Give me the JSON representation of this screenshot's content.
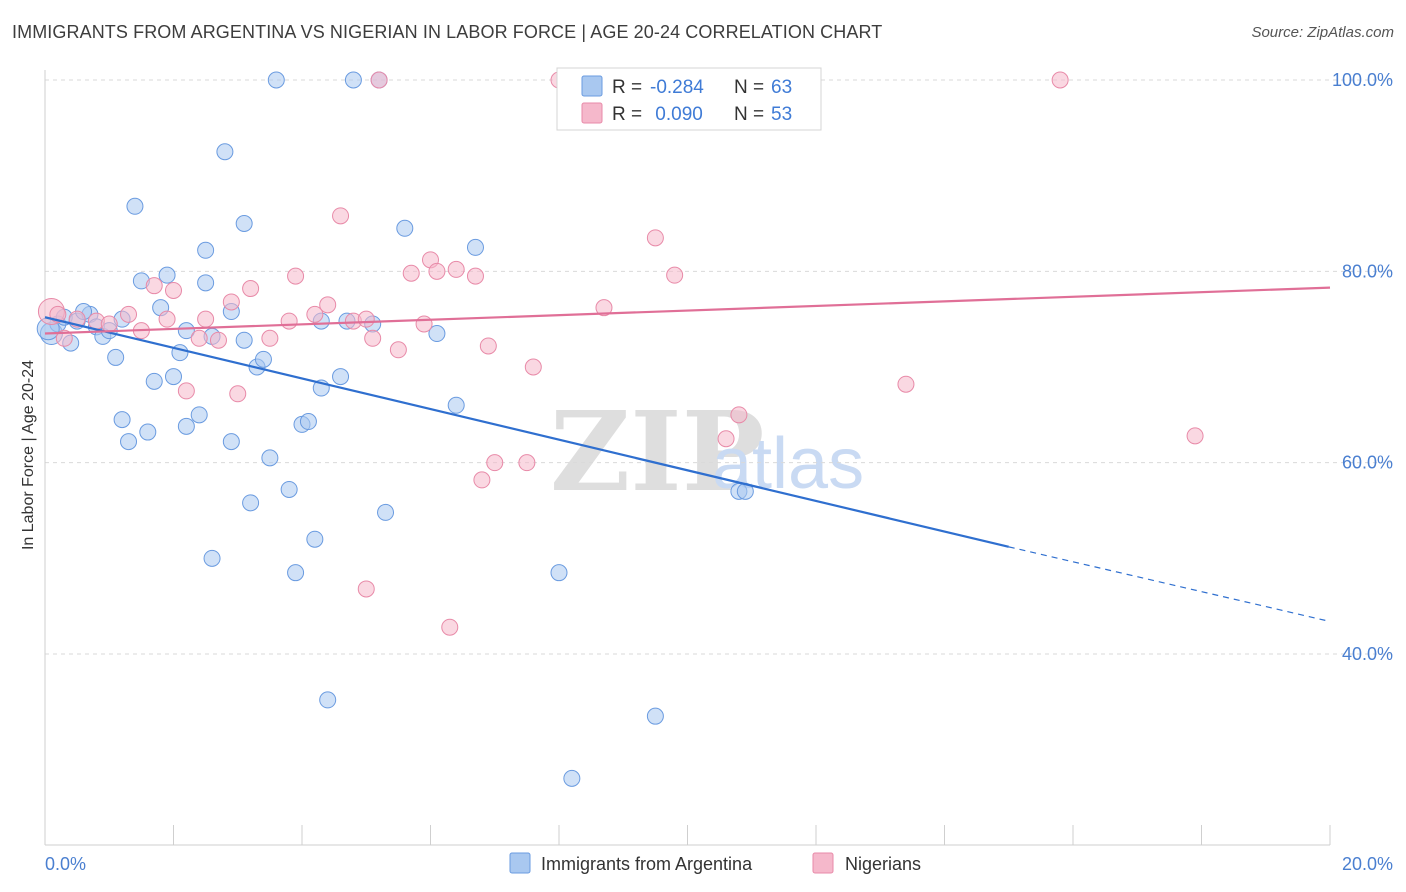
{
  "title": "IMMIGRANTS FROM ARGENTINA VS NIGERIAN IN LABOR FORCE | AGE 20-24 CORRELATION CHART",
  "source": "Source: ZipAtlas.com",
  "watermark": {
    "zip": "ZIP",
    "atlas": "atlas"
  },
  "chart_data": {
    "type": "scatter",
    "ylabel": "In Labor Force | Age 20-24",
    "xlim": [
      0,
      20
    ],
    "ylim": [
      23,
      104
    ],
    "x_tick_labels": [
      {
        "value": 0,
        "label": "0.0%"
      },
      {
        "value": 20,
        "label": "20.0%"
      }
    ],
    "y_tick_labels": [
      {
        "value": 100,
        "label": "100.0%"
      },
      {
        "value": 80,
        "label": "80.0%"
      },
      {
        "value": 60,
        "label": "60.0%"
      },
      {
        "value": 40,
        "label": "40.0%"
      }
    ],
    "y_gridlines": [
      100,
      80,
      60,
      40
    ],
    "x_minor_ticks": [
      2,
      4,
      6,
      8,
      10,
      12,
      14,
      16,
      18,
      20
    ],
    "grid": true,
    "legend": {
      "placement": "top-center",
      "rows": [
        {
          "r_label": "R =",
          "r_value": "-0.284",
          "n_label": "N =",
          "n_value": "63",
          "color": "#a9c8f0"
        },
        {
          "r_label": "R =",
          "r_value": " 0.090",
          "n_label": "N =",
          "n_value": "53",
          "color": "#f5b8cb"
        }
      ]
    },
    "series": [
      {
        "name": "Immigrants from Argentina",
        "color": "#a9c8f0",
        "stroke": "#6a9be0",
        "trend_color": "#2f6fcf",
        "trend": {
          "x0": 0,
          "y0": 75.2,
          "x1": 15,
          "y1": 51.2,
          "dash_to_x": 20,
          "dash_to_y": 43.4
        },
        "points": [
          [
            0.1,
            73.5
          ],
          [
            0.2,
            74.5
          ],
          [
            0.3,
            75.2
          ],
          [
            0.4,
            72.5
          ],
          [
            0.5,
            74.8
          ],
          [
            0.7,
            75.5
          ],
          [
            0.8,
            74.2
          ],
          [
            0.9,
            73.2
          ],
          [
            1.0,
            73.8
          ],
          [
            1.1,
            71.0
          ],
          [
            1.2,
            64.5
          ],
          [
            1.3,
            62.2
          ],
          [
            1.4,
            86.8
          ],
          [
            1.5,
            79.0
          ],
          [
            1.6,
            63.2
          ],
          [
            1.7,
            68.5
          ],
          [
            1.8,
            76.2
          ],
          [
            1.9,
            79.6
          ],
          [
            2.0,
            69.0
          ],
          [
            2.1,
            71.5
          ],
          [
            2.2,
            63.8
          ],
          [
            2.2,
            73.8
          ],
          [
            2.4,
            65.0
          ],
          [
            2.5,
            82.2
          ],
          [
            2.5,
            78.8
          ],
          [
            2.6,
            73.2
          ],
          [
            2.6,
            50.0
          ],
          [
            2.8,
            92.5
          ],
          [
            2.9,
            62.2
          ],
          [
            2.9,
            75.8
          ],
          [
            3.1,
            72.8
          ],
          [
            3.1,
            85.0
          ],
          [
            3.2,
            55.8
          ],
          [
            3.3,
            70.0
          ],
          [
            3.4,
            70.8
          ],
          [
            3.5,
            60.5
          ],
          [
            3.6,
            100.0
          ],
          [
            3.8,
            57.2
          ],
          [
            3.9,
            48.5
          ],
          [
            4.0,
            64.0
          ],
          [
            4.1,
            64.3
          ],
          [
            4.2,
            52.0
          ],
          [
            4.3,
            67.8
          ],
          [
            4.3,
            74.8
          ],
          [
            4.4,
            35.2
          ],
          [
            4.6,
            69.0
          ],
          [
            4.7,
            74.8
          ],
          [
            4.8,
            100.0
          ],
          [
            5.1,
            74.5
          ],
          [
            5.2,
            100.0
          ],
          [
            5.3,
            54.8
          ],
          [
            5.6,
            84.5
          ],
          [
            6.1,
            73.5
          ],
          [
            6.4,
            66.0
          ],
          [
            6.7,
            82.5
          ],
          [
            8.0,
            48.5
          ],
          [
            8.2,
            27.0
          ],
          [
            9.5,
            33.5
          ],
          [
            10.8,
            57.0
          ],
          [
            10.9,
            57.0
          ],
          [
            0.05,
            74.0
          ],
          [
            1.2,
            75.0
          ],
          [
            0.6,
            75.8
          ]
        ]
      },
      {
        "name": "Nigerians",
        "color": "#f5b8cb",
        "stroke": "#e88aa8",
        "trend_color": "#e06f97",
        "trend": {
          "x0": 0,
          "y0": 73.5,
          "x1": 20,
          "y1": 78.3
        },
        "points": [
          [
            0.1,
            75.8
          ],
          [
            0.3,
            73.0
          ],
          [
            0.5,
            75.0
          ],
          [
            0.8,
            74.8
          ],
          [
            1.0,
            74.5
          ],
          [
            1.3,
            75.5
          ],
          [
            1.5,
            73.8
          ],
          [
            1.7,
            78.5
          ],
          [
            1.9,
            75.0
          ],
          [
            2.0,
            78.0
          ],
          [
            2.2,
            67.5
          ],
          [
            2.4,
            73.0
          ],
          [
            2.5,
            75.0
          ],
          [
            2.7,
            72.8
          ],
          [
            2.9,
            76.8
          ],
          [
            3.0,
            67.2
          ],
          [
            3.2,
            78.2
          ],
          [
            3.5,
            73.0
          ],
          [
            3.8,
            74.8
          ],
          [
            3.9,
            79.5
          ],
          [
            4.2,
            75.5
          ],
          [
            4.4,
            76.5
          ],
          [
            4.6,
            85.8
          ],
          [
            4.8,
            74.8
          ],
          [
            5.0,
            75.0
          ],
          [
            5.1,
            73.0
          ],
          [
            5.2,
            100.0
          ],
          [
            5.5,
            71.8
          ],
          [
            5.7,
            79.8
          ],
          [
            5.9,
            74.5
          ],
          [
            6.0,
            81.2
          ],
          [
            6.1,
            80.0
          ],
          [
            6.4,
            80.2
          ],
          [
            6.7,
            79.5
          ],
          [
            6.8,
            58.2
          ],
          [
            6.9,
            72.2
          ],
          [
            7.0,
            60.0
          ],
          [
            7.5,
            60.0
          ],
          [
            7.6,
            70.0
          ],
          [
            8.0,
            100.0
          ],
          [
            8.7,
            76.2
          ],
          [
            8.8,
            100.0
          ],
          [
            9.5,
            83.5
          ],
          [
            9.8,
            79.6
          ],
          [
            10.6,
            62.5
          ],
          [
            10.8,
            65.0
          ],
          [
            11.0,
            100.0
          ],
          [
            13.4,
            68.2
          ],
          [
            15.8,
            100.0
          ],
          [
            17.9,
            62.8
          ],
          [
            5.0,
            46.8
          ],
          [
            6.3,
            42.8
          ],
          [
            0.2,
            75.5
          ]
        ]
      }
    ]
  }
}
